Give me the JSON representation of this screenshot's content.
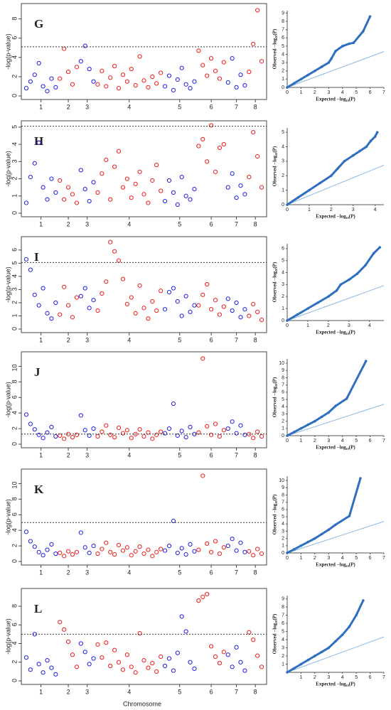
{
  "y_label": "-log(p-value)",
  "x_label": "Chromosome",
  "qq_x_label": "Expected −log₁₀(P)",
  "qq_y_label": "Observed −log₁₀(P)",
  "chromosomes": [
    "1",
    "2",
    "3",
    "4",
    "5",
    "6",
    "7",
    "8"
  ],
  "colors": [
    "#1f1fe0",
    "#ee1c1c"
  ],
  "chart_data": [
    {
      "type": "manhattan",
      "letter": "G",
      "ylim": [
        0,
        9.3
      ],
      "yticks": [
        0,
        2,
        4,
        6,
        8
      ],
      "threshold": 5.1,
      "points": [
        [
          0.8,
          1.5,
          2.2,
          3.4,
          1.0,
          0.5,
          1.8,
          0.9
        ],
        [
          1.8,
          4.9,
          2.5,
          1.2,
          3.0
        ],
        [
          3.6,
          5.2,
          2.8,
          1.5
        ],
        [
          1.2,
          2.6,
          1.0,
          1.9,
          3.1,
          0.8,
          2.2,
          1.5,
          2.8,
          1.1,
          4.1,
          1.6,
          0.9,
          2.0,
          1.3,
          2.4
        ],
        [
          1.0,
          2.1,
          0.6,
          1.7,
          2.9,
          1.2,
          0.8,
          1.5
        ],
        [
          4.7,
          3.2,
          2.1,
          3.9,
          2.6,
          1.8,
          3.5
        ],
        [
          1.4,
          3.9,
          0.9,
          2.2,
          1.1
        ],
        [
          2.5,
          5.4,
          8.9,
          3.6
        ]
      ],
      "qq": {
        "x": [
          0,
          0.5,
          1,
          1.5,
          2,
          2.5,
          3,
          3.2,
          3.5,
          4,
          4.5,
          4.8,
          5.5,
          6
        ],
        "values": [
          0,
          0.5,
          1,
          1.5,
          2,
          2.5,
          3,
          3.5,
          4.4,
          5,
          5.3,
          5.4,
          6.8,
          8.6
        ],
        "xlim": [
          0,
          7
        ],
        "xticks": [
          0,
          1,
          2,
          3,
          4,
          5,
          6,
          7
        ],
        "ylim": [
          0,
          9.3
        ],
        "yticks": [
          0,
          1,
          2,
          3,
          4,
          5,
          6,
          7,
          8,
          9
        ]
      }
    },
    {
      "type": "manhattan",
      "letter": "H",
      "ylim": [
        0,
        5.2
      ],
      "yticks": [
        0,
        1,
        2,
        3,
        4,
        5
      ],
      "threshold": 5.05,
      "points": [
        [
          0.6,
          2.1,
          2.9,
          4.1,
          1.5,
          0.8,
          2.0,
          1.2
        ],
        [
          1.9,
          0.8,
          1.5,
          1.1,
          0.6
        ],
        [
          2.5,
          1.4,
          0.7,
          1.8
        ],
        [
          1.2,
          2.3,
          3.1,
          0.8,
          2.7,
          3.6,
          1.5,
          2.0,
          0.9,
          1.7,
          2.4,
          1.1,
          0.6,
          1.9,
          2.8,
          1.3
        ],
        [
          0.7,
          1.9,
          1.2,
          0.5,
          2.1,
          1.0,
          0.8,
          1.4
        ],
        [
          3.9,
          4.3,
          3.0,
          5.1,
          2.4,
          3.8,
          4.0
        ],
        [
          1.5,
          2.3,
          0.9,
          1.6,
          1.1
        ],
        [
          2.1,
          4.7,
          3.3,
          1.5
        ]
      ],
      "qq": {
        "x": [
          0,
          0.5,
          1,
          1.5,
          2,
          2.3,
          2.6,
          3,
          3.3,
          3.6,
          3.8,
          4,
          4.1
        ],
        "values": [
          0,
          0.5,
          1,
          1.5,
          2,
          2.5,
          3,
          3.4,
          3.7,
          4,
          4.4,
          4.7,
          5
        ],
        "xlim": [
          0,
          4.4
        ],
        "xticks": [
          0,
          1,
          2,
          3,
          4
        ],
        "ylim": [
          0,
          5.3
        ],
        "yticks": [
          0,
          1,
          2,
          3,
          4,
          5
        ]
      }
    },
    {
      "type": "manhattan",
      "letter": "I",
      "ylim": [
        0,
        6.8
      ],
      "yticks": [
        0,
        1,
        2,
        3,
        4,
        5,
        6
      ],
      "threshold": 5.05,
      "points": [
        [
          5.3,
          4.5,
          2.6,
          1.8,
          3.1,
          1.2,
          0.8,
          2.0
        ],
        [
          1.1,
          3.2,
          1.8,
          0.9,
          2.4
        ],
        [
          2.5,
          3.1,
          1.6,
          2.2
        ],
        [
          1.4,
          2.7,
          3.6,
          6.6,
          5.9,
          5.2,
          3.8,
          1.9,
          2.4,
          1.2,
          3.3,
          1.6,
          0.8,
          2.1,
          1.4,
          2.9
        ],
        [
          1.5,
          2.8,
          3.1,
          2.1,
          1.0,
          2.5,
          1.3,
          1.8
        ],
        [
          1.8,
          2.6,
          3.4,
          1.5,
          2.2,
          1.1,
          1.7
        ],
        [
          2.3,
          1.4,
          2.0,
          0.9,
          1.5
        ],
        [
          1.0,
          1.9,
          1.3,
          0.7
        ]
      ],
      "qq": {
        "x": [
          0,
          0.5,
          1,
          1.5,
          2,
          2.4,
          2.6,
          3,
          3.4,
          3.8,
          4.2,
          4.5
        ],
        "values": [
          0,
          0.5,
          1,
          1.5,
          2,
          2.5,
          3,
          3.4,
          3.9,
          4.6,
          5.6,
          6.1
        ],
        "xlim": [
          0,
          4.7
        ],
        "xticks": [
          0,
          1,
          2,
          3,
          4
        ],
        "ylim": [
          0,
          6.4
        ],
        "yticks": [
          0,
          1,
          2,
          3,
          4,
          5,
          6
        ]
      }
    },
    {
      "type": "manhattan",
      "letter": "J",
      "ylim": [
        0,
        11.5
      ],
      "yticks": [
        0,
        2,
        4,
        6,
        8,
        10
      ],
      "threshold": 1.3,
      "points": [
        [
          3.8,
          2.6,
          1.9,
          1.2,
          0.8,
          1.5,
          2.2,
          1.0
        ],
        [
          1.1,
          0.7,
          1.3,
          0.9,
          1.2
        ],
        [
          3.7,
          1.8,
          1.1,
          2.0
        ],
        [
          1.0,
          1.6,
          2.4,
          1.2,
          0.9,
          2.1,
          1.4,
          1.8,
          0.8,
          1.3,
          1.9,
          1.0,
          1.5,
          0.7,
          1.2,
          1.6
        ],
        [
          1.4,
          2.0,
          5.2,
          1.1,
          1.7,
          0.9,
          2.2,
          1.3
        ],
        [
          1.5,
          11.0,
          2.3,
          1.2,
          2.6,
          1.0,
          1.8
        ],
        [
          2.0,
          2.9,
          1.4,
          2.4,
          1.2
        ],
        [
          1.3,
          0.8,
          1.6,
          1.0
        ]
      ],
      "qq": {
        "x": [
          0,
          0.5,
          1,
          1.5,
          2,
          2.5,
          3,
          3.5,
          4.3,
          5.7
        ],
        "values": [
          0,
          0.5,
          1,
          1.5,
          2,
          2.6,
          3.2,
          4.1,
          5.1,
          10.3
        ],
        "xlim": [
          0,
          7
        ],
        "xticks": [
          0,
          1,
          2,
          3,
          4,
          5,
          6,
          7
        ],
        "ylim": [
          0,
          10.6
        ],
        "yticks": [
          0,
          1,
          2,
          3,
          4,
          5,
          6,
          7,
          8,
          9,
          10
        ]
      }
    },
    {
      "type": "manhattan",
      "letter": "K",
      "ylim": [
        0,
        11.5
      ],
      "yticks": [
        0,
        2,
        4,
        6,
        8,
        10
      ],
      "threshold": 5,
      "points": [
        [
          3.8,
          2.6,
          1.9,
          1.2,
          0.8,
          1.5,
          2.2,
          1.0
        ],
        [
          1.1,
          0.7,
          1.3,
          0.9,
          1.2
        ],
        [
          3.7,
          1.8,
          1.1,
          2.0
        ],
        [
          1.0,
          1.6,
          2.4,
          1.2,
          0.9,
          2.1,
          1.4,
          1.8,
          0.8,
          1.3,
          1.9,
          1.0,
          1.5,
          0.7,
          1.2,
          1.6
        ],
        [
          1.4,
          2.0,
          5.2,
          1.1,
          1.7,
          0.9,
          2.2,
          1.3
        ],
        [
          1.5,
          11.0,
          2.3,
          1.2,
          2.6,
          1.0,
          1.8
        ],
        [
          2.0,
          2.9,
          1.4,
          2.4,
          1.2
        ],
        [
          1.3,
          0.8,
          1.6,
          1.0
        ]
      ],
      "qq": {
        "x": [
          0,
          0.5,
          1,
          1.5,
          2,
          2.5,
          3,
          3.5,
          4.5,
          5.3
        ],
        "values": [
          0,
          0.5,
          1,
          1.5,
          2,
          2.6,
          3.2,
          3.9,
          5.1,
          10.3
        ],
        "xlim": [
          0,
          7
        ],
        "xticks": [
          0,
          1,
          2,
          3,
          4,
          5,
          6,
          7
        ],
        "ylim": [
          0,
          10.6
        ],
        "yticks": [
          0,
          1,
          2,
          3,
          4,
          5,
          6,
          7,
          8,
          9,
          10
        ]
      }
    },
    {
      "type": "manhattan",
      "letter": "L",
      "ylim": [
        0,
        9.6
      ],
      "yticks": [
        0,
        2,
        4,
        6,
        8
      ],
      "threshold": 5,
      "points": [
        [
          2.5,
          1.2,
          5.0,
          1.8,
          0.9,
          2.2,
          1.4,
          0.7
        ],
        [
          6.3,
          5.5,
          4.2,
          2.8,
          1.5
        ],
        [
          4.0,
          3.1,
          1.8,
          2.4
        ],
        [
          3.9,
          2.5,
          4.1,
          1.6,
          3.3,
          2.0,
          1.2,
          2.8,
          1.5,
          0.9,
          5.1,
          2.2,
          1.4,
          1.9,
          1.0,
          2.6
        ],
        [
          1.6,
          2.4,
          1.1,
          3.0,
          6.9,
          5.3,
          2.0,
          1.3
        ],
        [
          8.6,
          9.0,
          9.3,
          3.7,
          2.6,
          1.9,
          3.1
        ],
        [
          2.8,
          1.5,
          3.6,
          2.0,
          1.1
        ],
        [
          5.2,
          4.4,
          2.7,
          1.5
        ]
      ],
      "qq": {
        "x": [
          0,
          0.5,
          1,
          1.5,
          2,
          2.5,
          3,
          3.5,
          4,
          4.5,
          5,
          5.5
        ],
        "values": [
          0,
          0.5,
          1,
          1.5,
          2,
          2.5,
          3,
          3.8,
          4.6,
          5.6,
          7,
          8.8
        ],
        "xlim": [
          0,
          7
        ],
        "xticks": [
          1,
          2,
          3,
          4,
          5,
          6,
          7
        ],
        "ylim": [
          0,
          9.4
        ],
        "yticks": [
          1,
          2,
          3,
          4,
          5,
          6,
          7,
          8,
          9
        ]
      }
    }
  ]
}
